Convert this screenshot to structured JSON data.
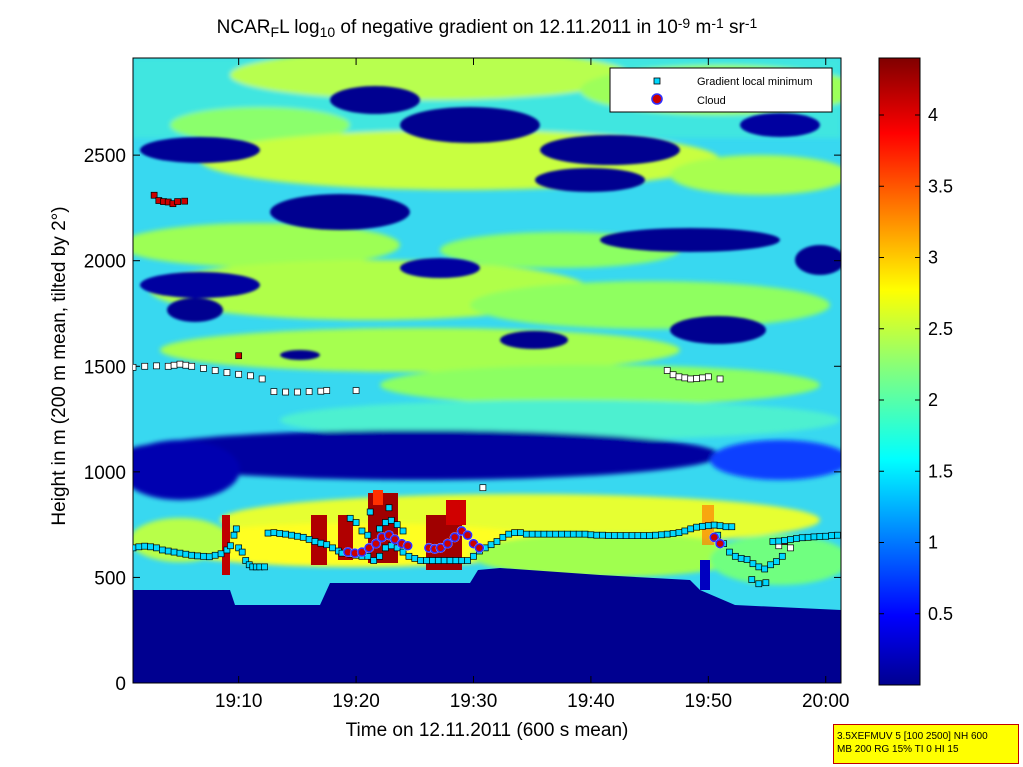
{
  "chart_data": {
    "type": "heatmap",
    "title": {
      "parts": [
        "NCAR",
        "F",
        "L log",
        "10",
        " of negative gradient on 12.11.2011 in 10",
        "-9",
        " m",
        "-1",
        " sr",
        "-1"
      ]
    },
    "xlabel": "Time on 12.11.2011 (600 s mean)",
    "ylabel": "Height in m (200 m mean, tilted by 2°)",
    "x_ticks": [
      "19:10",
      "19:20",
      "19:30",
      "19:40",
      "19:50",
      "20:00"
    ],
    "x_tick_minutes": [
      1150,
      1160,
      1170,
      1180,
      1190,
      1200
    ],
    "xlim_minutes": [
      1141,
      1201.3
    ],
    "y_ticks": [
      0,
      500,
      1000,
      1500,
      2000,
      2500
    ],
    "ylim": [
      0,
      2960
    ],
    "colorbar": {
      "ticks": [
        0.5,
        1,
        1.5,
        2,
        2.5,
        3,
        3.5,
        4
      ],
      "tick_labels": [
        "0.5",
        "1",
        "1.5",
        "2",
        "2.5",
        "3",
        "3.5",
        "4"
      ],
      "range": [
        0,
        4.4
      ],
      "colormap": "jet"
    },
    "legend": {
      "position": "top-right",
      "entries": [
        "Gradient local minimum",
        "Cloud"
      ]
    },
    "series": [
      {
        "name": "Gradient local minimum",
        "marker": "square",
        "color": "#00d8ff",
        "points": [
          [
            1141.0,
            640
          ],
          [
            1141.5,
            645
          ],
          [
            1142.0,
            648
          ],
          [
            1142.5,
            645
          ],
          [
            1143.0,
            640
          ],
          [
            1143.5,
            630
          ],
          [
            1144.0,
            625
          ],
          [
            1144.5,
            620
          ],
          [
            1145.0,
            615
          ],
          [
            1145.5,
            610
          ],
          [
            1146.0,
            605
          ],
          [
            1146.5,
            602
          ],
          [
            1147.0,
            600
          ],
          [
            1147.5,
            598
          ],
          [
            1148.0,
            605
          ],
          [
            1148.5,
            612
          ],
          [
            1149.0,
            630
          ],
          [
            1149.3,
            650
          ],
          [
            1149.6,
            700
          ],
          [
            1149.8,
            730
          ],
          [
            1150.0,
            640
          ],
          [
            1150.3,
            620
          ],
          [
            1150.6,
            580
          ],
          [
            1150.9,
            560
          ],
          [
            1151.2,
            550
          ],
          [
            1151.5,
            550
          ],
          [
            1151.8,
            550
          ],
          [
            1152.2,
            550
          ],
          [
            1152.5,
            710
          ],
          [
            1153.0,
            712
          ],
          [
            1153.5,
            708
          ],
          [
            1154.0,
            705
          ],
          [
            1154.5,
            700
          ],
          [
            1155.0,
            695
          ],
          [
            1155.5,
            690
          ],
          [
            1156.0,
            680
          ],
          [
            1156.5,
            670
          ],
          [
            1157.0,
            662
          ],
          [
            1157.5,
            655
          ],
          [
            1158.0,
            640
          ],
          [
            1158.5,
            625
          ],
          [
            1159.0,
            615
          ],
          [
            1159.5,
            610
          ],
          [
            1160.0,
            605
          ],
          [
            1160.5,
            600
          ],
          [
            1161.0,
            600
          ],
          [
            1161.5,
            580
          ],
          [
            1162.0,
            600
          ],
          [
            1162.5,
            640
          ],
          [
            1163.0,
            650
          ],
          [
            1163.5,
            640
          ],
          [
            1164.0,
            620
          ],
          [
            1164.5,
            600
          ],
          [
            1165.0,
            590
          ],
          [
            1165.5,
            580
          ],
          [
            1159.5,
            780
          ],
          [
            1160.0,
            760
          ],
          [
            1160.5,
            720
          ],
          [
            1161.0,
            700
          ],
          [
            1162.0,
            730
          ],
          [
            1162.5,
            760
          ],
          [
            1163.0,
            770
          ],
          [
            1163.5,
            750
          ],
          [
            1164.0,
            720
          ],
          [
            1161.2,
            810
          ],
          [
            1162.8,
            830
          ],
          [
            1158.8,
            615
          ],
          [
            1166.0,
            580
          ],
          [
            1166.5,
            580
          ],
          [
            1167.0,
            580
          ],
          [
            1167.5,
            580
          ],
          [
            1168.0,
            580
          ],
          [
            1168.5,
            580
          ],
          [
            1169.0,
            580
          ],
          [
            1169.5,
            580
          ],
          [
            1170.0,
            600
          ],
          [
            1170.5,
            625
          ],
          [
            1171.0,
            640
          ],
          [
            1171.5,
            655
          ],
          [
            1172.0,
            670
          ],
          [
            1172.5,
            690
          ],
          [
            1173.0,
            705
          ],
          [
            1173.5,
            712
          ],
          [
            1174.0,
            712
          ],
          [
            1174.5,
            705
          ],
          [
            1175.0,
            705
          ],
          [
            1175.5,
            705
          ],
          [
            1176.0,
            705
          ],
          [
            1176.5,
            705
          ],
          [
            1177.0,
            705
          ],
          [
            1177.5,
            705
          ],
          [
            1178.0,
            705
          ],
          [
            1178.5,
            705
          ],
          [
            1179.0,
            705
          ],
          [
            1179.5,
            705
          ],
          [
            1180.0,
            702
          ],
          [
            1180.5,
            700
          ],
          [
            1181.0,
            700
          ],
          [
            1181.5,
            698
          ],
          [
            1182.0,
            698
          ],
          [
            1182.5,
            698
          ],
          [
            1183.0,
            698
          ],
          [
            1183.5,
            698
          ],
          [
            1184.0,
            698
          ],
          [
            1184.5,
            698
          ],
          [
            1185.0,
            698
          ],
          [
            1185.5,
            700
          ],
          [
            1186.0,
            702
          ],
          [
            1186.5,
            705
          ],
          [
            1187.0,
            708
          ],
          [
            1187.5,
            712
          ],
          [
            1188.0,
            720
          ],
          [
            1188.5,
            730
          ],
          [
            1189.0,
            738
          ],
          [
            1189.5,
            742
          ],
          [
            1190.0,
            745
          ],
          [
            1190.5,
            748
          ],
          [
            1191.0,
            745
          ],
          [
            1191.5,
            740
          ],
          [
            1192.0,
            740
          ],
          [
            1190.8,
            700
          ],
          [
            1191.3,
            660
          ],
          [
            1191.8,
            620
          ],
          [
            1192.3,
            600
          ],
          [
            1192.8,
            590
          ],
          [
            1193.3,
            585
          ],
          [
            1193.8,
            565
          ],
          [
            1194.3,
            550
          ],
          [
            1194.8,
            540
          ],
          [
            1195.3,
            560
          ],
          [
            1195.8,
            575
          ],
          [
            1196.3,
            600
          ],
          [
            1193.7,
            490
          ],
          [
            1194.3,
            470
          ],
          [
            1194.9,
            475
          ],
          [
            1195.5,
            670
          ],
          [
            1196.0,
            672
          ],
          [
            1196.5,
            675
          ],
          [
            1197.0,
            680
          ],
          [
            1197.5,
            684
          ],
          [
            1198.0,
            688
          ],
          [
            1198.5,
            690
          ],
          [
            1199.0,
            692
          ],
          [
            1199.5,
            694
          ],
          [
            1200.0,
            695
          ],
          [
            1200.5,
            698
          ],
          [
            1201.0,
            700
          ]
        ]
      },
      {
        "name": "Cloud",
        "marker": "circle",
        "color": "#cc0000",
        "points": [
          [
            1159.3,
            620
          ],
          [
            1159.9,
            615
          ],
          [
            1160.5,
            620
          ],
          [
            1161.1,
            640
          ],
          [
            1161.7,
            660
          ],
          [
            1162.2,
            690
          ],
          [
            1162.8,
            700
          ],
          [
            1163.3,
            680
          ],
          [
            1163.9,
            660
          ],
          [
            1164.4,
            650
          ],
          [
            1166.2,
            640
          ],
          [
            1166.7,
            635
          ],
          [
            1167.2,
            640
          ],
          [
            1167.8,
            660
          ],
          [
            1168.4,
            690
          ],
          [
            1169.0,
            720
          ],
          [
            1169.5,
            700
          ],
          [
            1170.0,
            660
          ],
          [
            1170.5,
            640
          ],
          [
            1190.5,
            690
          ],
          [
            1191.0,
            660
          ]
        ]
      }
    ],
    "outlier_points": [
      {
        "color": "#ffffff",
        "points": [
          [
            1141,
            1495
          ],
          [
            1142,
            1500
          ],
          [
            1143,
            1502
          ],
          [
            1144,
            1500
          ],
          [
            1144.5,
            1505
          ],
          [
            1145,
            1510
          ],
          [
            1145.5,
            1505
          ],
          [
            1146,
            1500
          ],
          [
            1147,
            1490
          ],
          [
            1148,
            1480
          ],
          [
            1149,
            1470
          ],
          [
            1150,
            1462
          ],
          [
            1151,
            1455
          ],
          [
            1152,
            1440
          ],
          [
            1153,
            1380
          ],
          [
            1154,
            1378
          ],
          [
            1155,
            1378
          ],
          [
            1156,
            1380
          ],
          [
            1157,
            1382
          ],
          [
            1157.5,
            1385
          ],
          [
            1160,
            1385
          ],
          [
            1170.8,
            925
          ],
          [
            1186.5,
            1480
          ],
          [
            1187,
            1460
          ],
          [
            1187.5,
            1450
          ],
          [
            1188,
            1445
          ],
          [
            1188.5,
            1440
          ],
          [
            1189,
            1442
          ],
          [
            1189.5,
            1445
          ],
          [
            1190,
            1450
          ],
          [
            1191,
            1440
          ],
          [
            1196,
            650
          ],
          [
            1197,
            640
          ]
        ]
      },
      {
        "color": "#cc0000",
        "points": [
          [
            1142.8,
            2310
          ],
          [
            1143.2,
            2285
          ],
          [
            1143.6,
            2280
          ],
          [
            1144,
            2278
          ],
          [
            1144.4,
            2270
          ],
          [
            1144.8,
            2280
          ],
          [
            1145.4,
            2282
          ],
          [
            1150.0,
            1550
          ],
          [
            1196.5,
            670
          ]
        ]
      }
    ]
  },
  "info_box": {
    "line1": "3.5XEFMUV 5 [100 2500] NH 600",
    "line2": "MB 200 RG 15% TI 0 HI 15"
  }
}
